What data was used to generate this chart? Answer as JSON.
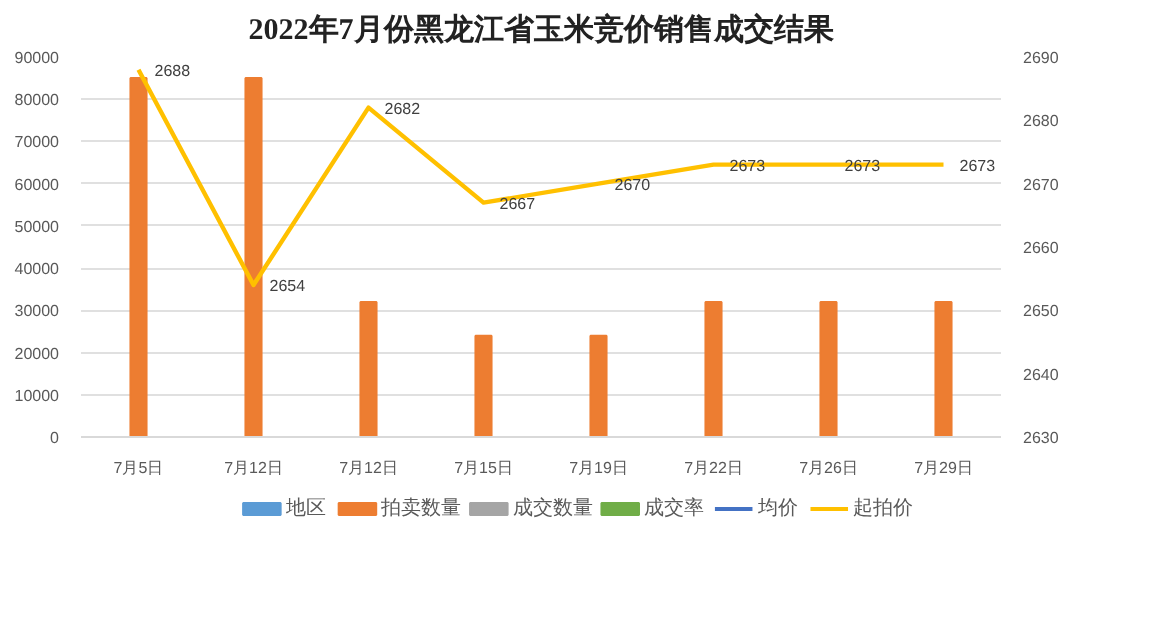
{
  "chart_data": {
    "type": "bar",
    "title": "2022年7月份黑龙江省玉米竞价销售成交结果",
    "categories": [
      "7月5日",
      "7月12日",
      "7月12日",
      "7月15日",
      "7月19日",
      "7月22日",
      "7月26日",
      "7月29日"
    ],
    "series": [
      {
        "name": "地区",
        "color": "#5b9bd5",
        "values": [
          null,
          null,
          null,
          null,
          null,
          null,
          null,
          null
        ]
      },
      {
        "name": "拍卖数量",
        "color": "#ed7d31",
        "values": [
          85000,
          85000,
          32000,
          24000,
          24000,
          32000,
          32000,
          32000
        ]
      },
      {
        "name": "成交数量",
        "color": "#a5a5a5",
        "values": [
          null,
          null,
          null,
          null,
          null,
          null,
          null,
          null
        ]
      },
      {
        "name": "成交率",
        "color": "#70ad47",
        "values": [
          null,
          null,
          null,
          null,
          null,
          null,
          null,
          null
        ]
      },
      {
        "name": "均价",
        "type": "line",
        "axis": "y2",
        "color": "#4472c4",
        "values": [
          null,
          null,
          null,
          null,
          null,
          null,
          null,
          null
        ]
      },
      {
        "name": "起拍价",
        "type": "line",
        "axis": "y2",
        "color": "#ffc000",
        "values": [
          2688,
          2654,
          2682,
          2667,
          2670,
          2673,
          2673,
          2673
        ],
        "value_labels": [
          "2688",
          "2654",
          "2682",
          "2667",
          "2670",
          "2673",
          "2673",
          "2673"
        ]
      }
    ],
    "ylim": [
      0,
      90000
    ],
    "yticks": [
      0,
      10000,
      20000,
      30000,
      40000,
      50000,
      60000,
      70000,
      80000,
      90000
    ],
    "y2lim": [
      2630,
      2690
    ],
    "y2ticks": [
      2630,
      2640,
      2650,
      2660,
      2670,
      2680,
      2690
    ],
    "grid": "y",
    "legend": "bottom",
    "marker": "none",
    "line_style": "solid"
  }
}
